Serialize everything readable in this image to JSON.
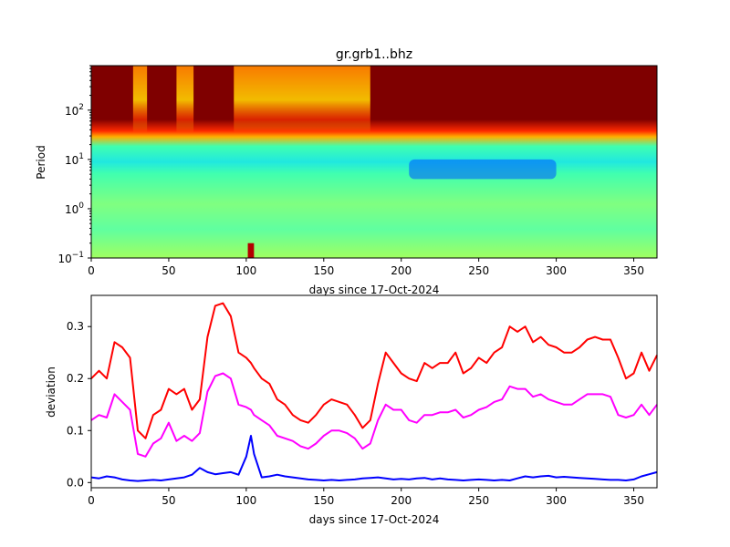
{
  "chart_data": [
    {
      "type": "heatmap",
      "title": "gr.grb1..bhz",
      "xlabel": "days since 17-Oct-2024",
      "ylabel": "Period",
      "xlim": [
        0,
        365
      ],
      "xticks": [
        0,
        50,
        100,
        150,
        200,
        250,
        300,
        350
      ],
      "yscale": "log",
      "ylim": [
        0.1,
        800
      ],
      "yticks": [
        {
          "value": 0.1,
          "base": "10",
          "exp": "−1"
        },
        {
          "value": 1,
          "base": "10",
          "exp": "0"
        },
        {
          "value": 10,
          "base": "10",
          "exp": "1"
        },
        {
          "value": 100,
          "base": "10",
          "exp": "2"
        }
      ],
      "colormap": "jet",
      "bands_log10_period_vs_intensity": [
        {
          "period": 800,
          "value": 1.0
        },
        {
          "period": 200,
          "value": 1.0
        },
        {
          "period": 60,
          "value": 0.95
        },
        {
          "period": 25,
          "value": 0.7
        },
        {
          "period": 15,
          "value": 0.42
        },
        {
          "period": 8,
          "value": 0.33
        },
        {
          "period": 4,
          "value": 0.38
        },
        {
          "period": 1,
          "value": 0.45
        },
        {
          "period": 0.4,
          "value": 0.42
        },
        {
          "period": 0.1,
          "value": 0.5
        }
      ],
      "high_activity_day_ranges": [
        [
          27,
          36
        ],
        [
          55,
          66
        ],
        [
          92,
          180
        ]
      ],
      "spikes": [
        {
          "day": 103,
          "period_range": [
            0.1,
            0.2
          ],
          "value": 0.95
        }
      ],
      "low_dips": [
        {
          "day_range": [
            205,
            300
          ],
          "period_range": [
            4,
            10
          ],
          "value": 0.22
        }
      ],
      "grid": false
    },
    {
      "type": "line",
      "title": "",
      "xlabel": "days since 17-Oct-2024",
      "ylabel": "deviation",
      "xlim": [
        0,
        365
      ],
      "ylim": [
        -0.01,
        0.36
      ],
      "xticks": [
        0,
        50,
        100,
        150,
        200,
        250,
        300,
        350
      ],
      "yticks": [
        0.0,
        0.1,
        0.2,
        0.3
      ],
      "grid": false,
      "x": [
        0,
        5,
        10,
        15,
        20,
        25,
        30,
        35,
        40,
        45,
        50,
        55,
        60,
        65,
        70,
        75,
        80,
        85,
        90,
        95,
        100,
        103,
        105,
        110,
        115,
        120,
        125,
        130,
        135,
        140,
        145,
        150,
        155,
        160,
        165,
        170,
        175,
        180,
        185,
        190,
        195,
        200,
        205,
        210,
        215,
        220,
        225,
        230,
        235,
        240,
        245,
        250,
        255,
        260,
        265,
        270,
        275,
        280,
        285,
        290,
        295,
        300,
        305,
        310,
        315,
        320,
        325,
        330,
        335,
        340,
        345,
        350,
        355,
        360,
        365
      ],
      "series": [
        {
          "color": "#ff0000",
          "values": [
            0.2,
            0.215,
            0.2,
            0.27,
            0.26,
            0.24,
            0.1,
            0.085,
            0.13,
            0.14,
            0.18,
            0.17,
            0.18,
            0.14,
            0.16,
            0.28,
            0.34,
            0.345,
            0.32,
            0.25,
            0.24,
            0.23,
            0.22,
            0.2,
            0.19,
            0.16,
            0.15,
            0.13,
            0.12,
            0.115,
            0.13,
            0.15,
            0.16,
            0.155,
            0.15,
            0.13,
            0.105,
            0.12,
            0.19,
            0.25,
            0.23,
            0.21,
            0.2,
            0.195,
            0.23,
            0.22,
            0.23,
            0.23,
            0.25,
            0.21,
            0.22,
            0.24,
            0.23,
            0.25,
            0.26,
            0.3,
            0.29,
            0.3,
            0.27,
            0.28,
            0.265,
            0.26,
            0.25,
            0.25,
            0.26,
            0.275,
            0.28,
            0.275,
            0.275,
            0.24,
            0.2,
            0.21,
            0.25,
            0.215,
            0.245
          ]
        },
        {
          "color": "#ff00ff",
          "values": [
            0.12,
            0.13,
            0.125,
            0.17,
            0.155,
            0.14,
            0.055,
            0.05,
            0.075,
            0.085,
            0.115,
            0.08,
            0.09,
            0.08,
            0.095,
            0.175,
            0.205,
            0.21,
            0.2,
            0.15,
            0.145,
            0.14,
            0.13,
            0.12,
            0.11,
            0.09,
            0.085,
            0.08,
            0.07,
            0.065,
            0.075,
            0.09,
            0.1,
            0.1,
            0.095,
            0.085,
            0.065,
            0.075,
            0.12,
            0.15,
            0.14,
            0.14,
            0.12,
            0.115,
            0.13,
            0.13,
            0.135,
            0.135,
            0.14,
            0.125,
            0.13,
            0.14,
            0.145,
            0.155,
            0.16,
            0.185,
            0.18,
            0.18,
            0.165,
            0.17,
            0.16,
            0.155,
            0.15,
            0.15,
            0.16,
            0.17,
            0.17,
            0.17,
            0.165,
            0.13,
            0.125,
            0.13,
            0.15,
            0.13,
            0.15
          ]
        },
        {
          "color": "#0000ff",
          "values": [
            0.01,
            0.008,
            0.012,
            0.01,
            0.006,
            0.004,
            0.003,
            0.004,
            0.005,
            0.004,
            0.006,
            0.008,
            0.01,
            0.015,
            0.028,
            0.02,
            0.016,
            0.018,
            0.02,
            0.015,
            0.05,
            0.09,
            0.055,
            0.01,
            0.012,
            0.015,
            0.012,
            0.01,
            0.008,
            0.006,
            0.005,
            0.004,
            0.005,
            0.004,
            0.005,
            0.006,
            0.008,
            0.009,
            0.01,
            0.008,
            0.006,
            0.007,
            0.006,
            0.008,
            0.009,
            0.006,
            0.008,
            0.006,
            0.005,
            0.004,
            0.005,
            0.006,
            0.005,
            0.004,
            0.005,
            0.004,
            0.008,
            0.012,
            0.01,
            0.012,
            0.013,
            0.01,
            0.011,
            0.01,
            0.009,
            0.008,
            0.007,
            0.006,
            0.005,
            0.005,
            0.004,
            0.006,
            0.012,
            0.016,
            0.02
          ]
        }
      ]
    }
  ]
}
